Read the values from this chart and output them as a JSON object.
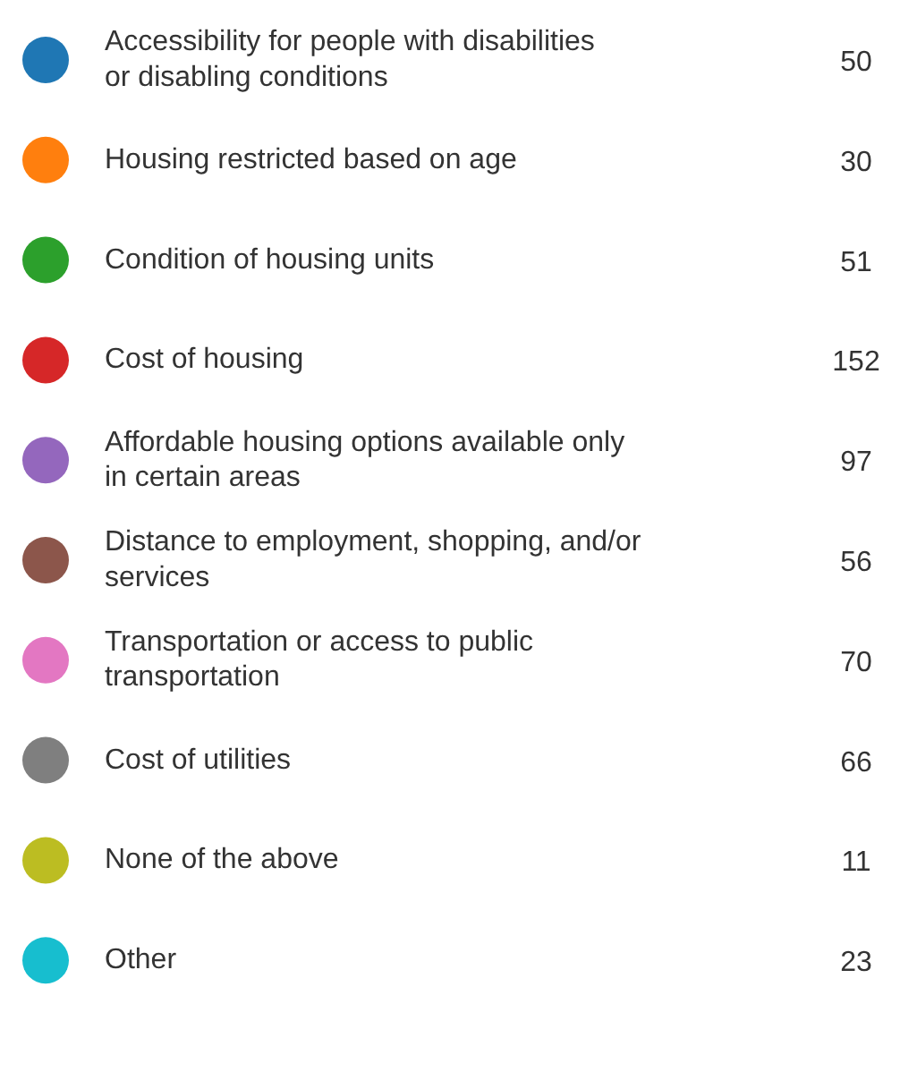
{
  "chart_data": {
    "type": "other",
    "categories": [
      "Accessibility for people with disabilities or disabling conditions",
      "Housing restricted based on age",
      "Condition of housing units",
      "Cost of housing",
      "Affordable housing options available only in certain areas",
      "Distance to employment, shopping, and/or services",
      "Transportation or access to public transportation",
      "Cost of utilities",
      "None of the above",
      "Other"
    ],
    "values": [
      50,
      30,
      51,
      152,
      97,
      56,
      70,
      66,
      11,
      23
    ],
    "data_labels": true,
    "colors": [
      "#1f77b4",
      "#ff7f0e",
      "#2ca02c",
      "#d62728",
      "#9467bd",
      "#8c564b",
      "#e377c2",
      "#7f7f7f",
      "#bcbd22",
      "#17becf"
    ]
  }
}
